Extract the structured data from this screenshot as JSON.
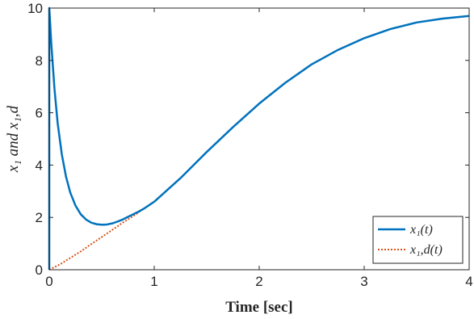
{
  "chart_data": {
    "type": "line",
    "xlabel": "Time [sec]",
    "ylabel": "x₁ and x₁,d",
    "xlim": [
      0,
      4
    ],
    "ylim": [
      0,
      10
    ],
    "xticks": [
      "0",
      "1",
      "2",
      "3",
      "4"
    ],
    "yticks": [
      "0",
      "2",
      "4",
      "6",
      "8",
      "10"
    ],
    "grid": false,
    "legend_position": "bottom-right",
    "series": [
      {
        "name": "x₁(t)",
        "color": "#0072BD",
        "style": "solid",
        "x": [
          0,
          0,
          0.02,
          0.05,
          0.08,
          0.12,
          0.16,
          0.2,
          0.25,
          0.3,
          0.35,
          0.4,
          0.45,
          0.5,
          0.55,
          0.6,
          0.65,
          0.7,
          0.75,
          0.8,
          0.85,
          0.9,
          1.0,
          1.25,
          1.5,
          1.75,
          2.0,
          2.25,
          2.5,
          2.75,
          3.0,
          3.25,
          3.5,
          3.75,
          4.0
        ],
        "y": [
          0,
          10,
          8.6,
          6.9,
          5.6,
          4.4,
          3.55,
          2.95,
          2.45,
          2.12,
          1.92,
          1.8,
          1.74,
          1.72,
          1.73,
          1.77,
          1.84,
          1.92,
          2.02,
          2.12,
          2.22,
          2.33,
          2.6,
          3.5,
          4.5,
          5.45,
          6.35,
          7.15,
          7.85,
          8.4,
          8.85,
          9.2,
          9.45,
          9.6,
          9.7
        ]
      },
      {
        "name": "x₁,d(t)",
        "color": "#D95319",
        "style": "dotted",
        "x": [
          0,
          0.1,
          0.2,
          0.3,
          0.4,
          0.5,
          0.6,
          0.7,
          0.8,
          0.9,
          1.0,
          1.25,
          1.5,
          1.75,
          2.0,
          2.25,
          2.5,
          2.75,
          3.0,
          3.25,
          3.5,
          3.75,
          4.0
        ],
        "y": [
          0,
          0.2,
          0.45,
          0.7,
          0.98,
          1.25,
          1.52,
          1.8,
          2.05,
          2.33,
          2.6,
          3.5,
          4.5,
          5.45,
          6.35,
          7.15,
          7.85,
          8.4,
          8.85,
          9.2,
          9.45,
          9.6,
          9.7
        ]
      }
    ]
  }
}
